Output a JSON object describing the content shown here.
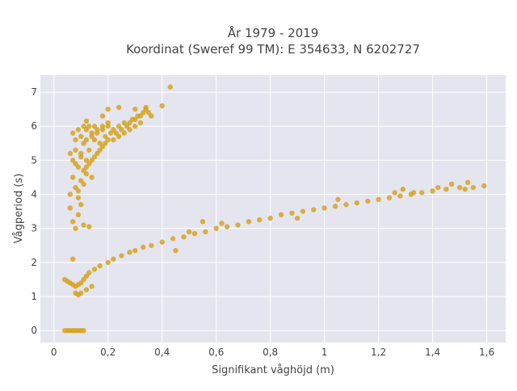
{
  "chart_data": {
    "type": "scatter",
    "title_lines": [
      "År 1979 - 2019",
      "Koordinat (Sweref 99 TM): E 354633, N 6202727"
    ],
    "xlabel": "Signifikant våghöjd (m)",
    "ylabel": "Vågperiod (s)",
    "xlim": [
      -0.05,
      1.67
    ],
    "ylim": [
      -0.35,
      7.5
    ],
    "xticks": [
      0,
      0.2,
      0.4,
      0.6,
      0.8,
      1.0,
      1.2,
      1.4,
      1.6
    ],
    "xtick_labels": [
      "0",
      "0,2",
      "0,4",
      "0,6",
      "0,8",
      "1",
      "1,2",
      "1,4",
      "1,6"
    ],
    "yticks": [
      0,
      1,
      2,
      3,
      4,
      5,
      6,
      7
    ],
    "ytick_labels": [
      "0",
      "1",
      "2",
      "3",
      "4",
      "5",
      "6",
      "7"
    ],
    "grid": true,
    "marker_color": "#D4A017",
    "background_color": "#E5E5F0",
    "series": [
      {
        "x": [
          0.04,
          0.05,
          0.06,
          0.07,
          0.08,
          0.09,
          0.1,
          0.11,
          0.12,
          0.13,
          0.15,
          0.17,
          0.2,
          0.22,
          0.25,
          0.28,
          0.3,
          0.33,
          0.36,
          0.4,
          0.44,
          0.48,
          0.52,
          0.56,
          0.6,
          0.64,
          0.68,
          0.72,
          0.76,
          0.8,
          0.84,
          0.88,
          0.92,
          0.96,
          1.0,
          1.04,
          1.08,
          1.12,
          1.16,
          1.2,
          1.24,
          1.28,
          1.32,
          1.36,
          1.4,
          1.45,
          1.5,
          1.55,
          1.59,
          0.07,
          0.08,
          0.09,
          0.1,
          0.12,
          0.14,
          0.13,
          0.45,
          0.5,
          0.55,
          0.62,
          0.9,
          1.05,
          1.26,
          1.29,
          1.33,
          1.42,
          1.47,
          1.52,
          1.53
        ],
        "y": [
          1.5,
          1.45,
          1.4,
          1.35,
          1.3,
          1.35,
          1.4,
          1.5,
          1.6,
          1.7,
          1.8,
          1.9,
          2.0,
          2.1,
          2.2,
          2.3,
          2.35,
          2.45,
          2.5,
          2.6,
          2.7,
          2.75,
          2.85,
          2.9,
          3.0,
          3.05,
          3.1,
          3.2,
          3.25,
          3.3,
          3.4,
          3.45,
          3.5,
          3.55,
          3.6,
          3.65,
          3.7,
          3.75,
          3.8,
          3.85,
          3.9,
          3.95,
          4.0,
          4.05,
          4.1,
          4.15,
          4.2,
          4.2,
          4.25,
          2.1,
          1.1,
          1.05,
          1.1,
          1.2,
          1.3,
          3.05,
          2.35,
          2.9,
          3.2,
          3.15,
          3.3,
          3.85,
          4.05,
          4.15,
          4.05,
          4.2,
          4.3,
          4.15,
          4.35
        ]
      },
      {
        "x": [
          0.06,
          0.06,
          0.07,
          0.07,
          0.08,
          0.08,
          0.09,
          0.09,
          0.1,
          0.1,
          0.11,
          0.11,
          0.12,
          0.12,
          0.13,
          0.14,
          0.15,
          0.16,
          0.17,
          0.18,
          0.19,
          0.2,
          0.21,
          0.22,
          0.23,
          0.24,
          0.25,
          0.26,
          0.27,
          0.28,
          0.29,
          0.3,
          0.31,
          0.32,
          0.33,
          0.34,
          0.35,
          0.36,
          0.07,
          0.08,
          0.09,
          0.1,
          0.11,
          0.12,
          0.13,
          0.14,
          0.15,
          0.16,
          0.17,
          0.18,
          0.19,
          0.2,
          0.22,
          0.24,
          0.26,
          0.28,
          0.3,
          0.32,
          0.07,
          0.08,
          0.09,
          0.1,
          0.11,
          0.12,
          0.13,
          0.14,
          0.15,
          0.16,
          0.18,
          0.2,
          0.08,
          0.1,
          0.12,
          0.14,
          0.06,
          0.09,
          0.11,
          0.4,
          0.43,
          0.34,
          0.3,
          0.24,
          0.2,
          0.18,
          0.12
        ],
        "y": [
          4.0,
          3.6,
          4.5,
          5.0,
          4.2,
          5.3,
          4.8,
          3.9,
          5.2,
          4.4,
          5.5,
          4.7,
          5.0,
          5.6,
          5.3,
          5.7,
          5.6,
          5.8,
          5.5,
          5.9,
          5.7,
          6.0,
          5.8,
          5.9,
          5.8,
          6.0,
          5.9,
          6.1,
          6.0,
          6.1,
          6.2,
          6.2,
          6.3,
          6.3,
          6.4,
          6.5,
          6.4,
          6.3,
          3.2,
          3.0,
          4.1,
          3.7,
          4.3,
          4.6,
          4.9,
          5.0,
          5.1,
          5.2,
          5.3,
          5.4,
          5.5,
          5.6,
          5.6,
          5.7,
          5.8,
          5.9,
          6.0,
          6.1,
          5.8,
          5.6,
          5.9,
          5.7,
          6.0,
          5.9,
          6.0,
          5.8,
          6.0,
          5.9,
          6.0,
          6.1,
          4.9,
          5.1,
          4.8,
          4.5,
          5.2,
          3.4,
          3.1,
          6.6,
          7.15,
          6.55,
          6.5,
          6.55,
          6.5,
          6.3,
          6.15
        ]
      },
      {
        "x": [
          0.04,
          0.05,
          0.06,
          0.07,
          0.08,
          0.09,
          0.1,
          0.11
        ],
        "y": [
          0,
          0,
          0,
          0,
          0,
          0,
          0,
          0
        ]
      }
    ]
  }
}
